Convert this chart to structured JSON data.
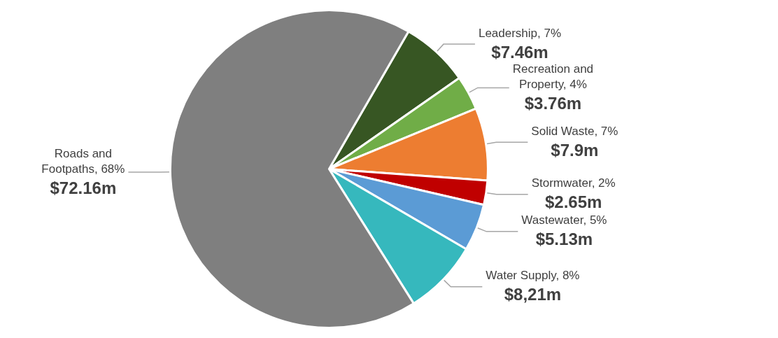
{
  "chart_data": {
    "type": "pie",
    "categories": [
      "Leadership, 7%",
      "Recreation and Property, 4%",
      "Solid Waste, 7%",
      "Stormwater, 2%",
      "Wastewater, 5%",
      "Water Supply, 8%",
      "Roads and Footpaths, 68%"
    ],
    "values": [
      7.46,
      3.76,
      7.9,
      2.65,
      5.13,
      8.21,
      72.16
    ],
    "value_labels": [
      "$7.46m",
      "$3.76m",
      "$7.9m",
      "$2.65m",
      "$5.13m",
      "$8,21m",
      "$72.16m"
    ],
    "colors": [
      "#375623",
      "#70ad47",
      "#ed7d31",
      "#c00000",
      "#5b9bd5",
      "#36b8bd",
      "#7f7f7f"
    ],
    "legend": false
  }
}
